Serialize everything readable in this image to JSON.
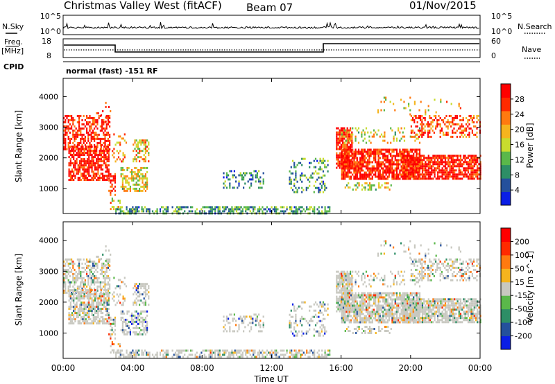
{
  "header": {
    "title": "Christmas Valley West (fitACF)",
    "beam": "Beam 07",
    "date": "01/Nov/2015"
  },
  "status_panels": {
    "nsky_label": "N.Sky",
    "nsky_ticks": [
      "10^5",
      "10^0"
    ],
    "nsearch_label": "N.Search",
    "nsearch_ticks": [
      "10^5",
      "10^0"
    ],
    "freq_label_1": "Freq.",
    "freq_label_2": "[MHz]",
    "freq_ticks": [
      "18",
      "8"
    ],
    "nave_label": "Nave",
    "nave_ticks": [
      "60",
      "0"
    ],
    "cpid_label": "CPID",
    "cpid_text": "normal (fast) -151 RF"
  },
  "chart_data": [
    {
      "type": "heatmap",
      "name": "power",
      "ylabel": "Slant Range [km]",
      "yticks": [
        "1000",
        "2000",
        "3000",
        "4000"
      ],
      "ylim": [
        180,
        4600
      ],
      "colorbar": {
        "label": "Power [dB]",
        "ticks": [
          "4",
          "8",
          "12",
          "16",
          "20",
          "24",
          "28"
        ],
        "range": [
          0,
          32
        ],
        "colors": [
          "#0a1ee6",
          "#24509c",
          "#2d8e66",
          "#5ab84a",
          "#c8dc2e",
          "#f5b41e",
          "#ff7a10",
          "#ff2a00",
          "#ff0000"
        ]
      }
    },
    {
      "type": "heatmap",
      "name": "velocity",
      "ylabel": "Slant Range [km]",
      "yticks": [
        "1000",
        "2000",
        "3000",
        "4000"
      ],
      "ylim": [
        180,
        4600
      ],
      "colorbar": {
        "label": "Velocity [m s^-1]",
        "ticks": [
          "200",
          "100",
          "50",
          "15",
          "-15",
          "-50",
          "-100",
          "-200"
        ],
        "range": [
          -250,
          250
        ],
        "colors": [
          "#0a1ee6",
          "#24509c",
          "#2d8e66",
          "#5ab84a",
          "#c8c8c0",
          "#f5b41e",
          "#ff7a10",
          "#ff2a00",
          "#ff0000"
        ]
      }
    }
  ],
  "time_axis": {
    "xlabel": "Time UT",
    "ticks": [
      "00:00",
      "04:00",
      "08:00",
      "12:00",
      "16:00",
      "20:00",
      "00:00"
    ],
    "xlim_hours": [
      0,
      24
    ]
  },
  "colors": {
    "axis": "#000000",
    "background": "#ffffff"
  }
}
